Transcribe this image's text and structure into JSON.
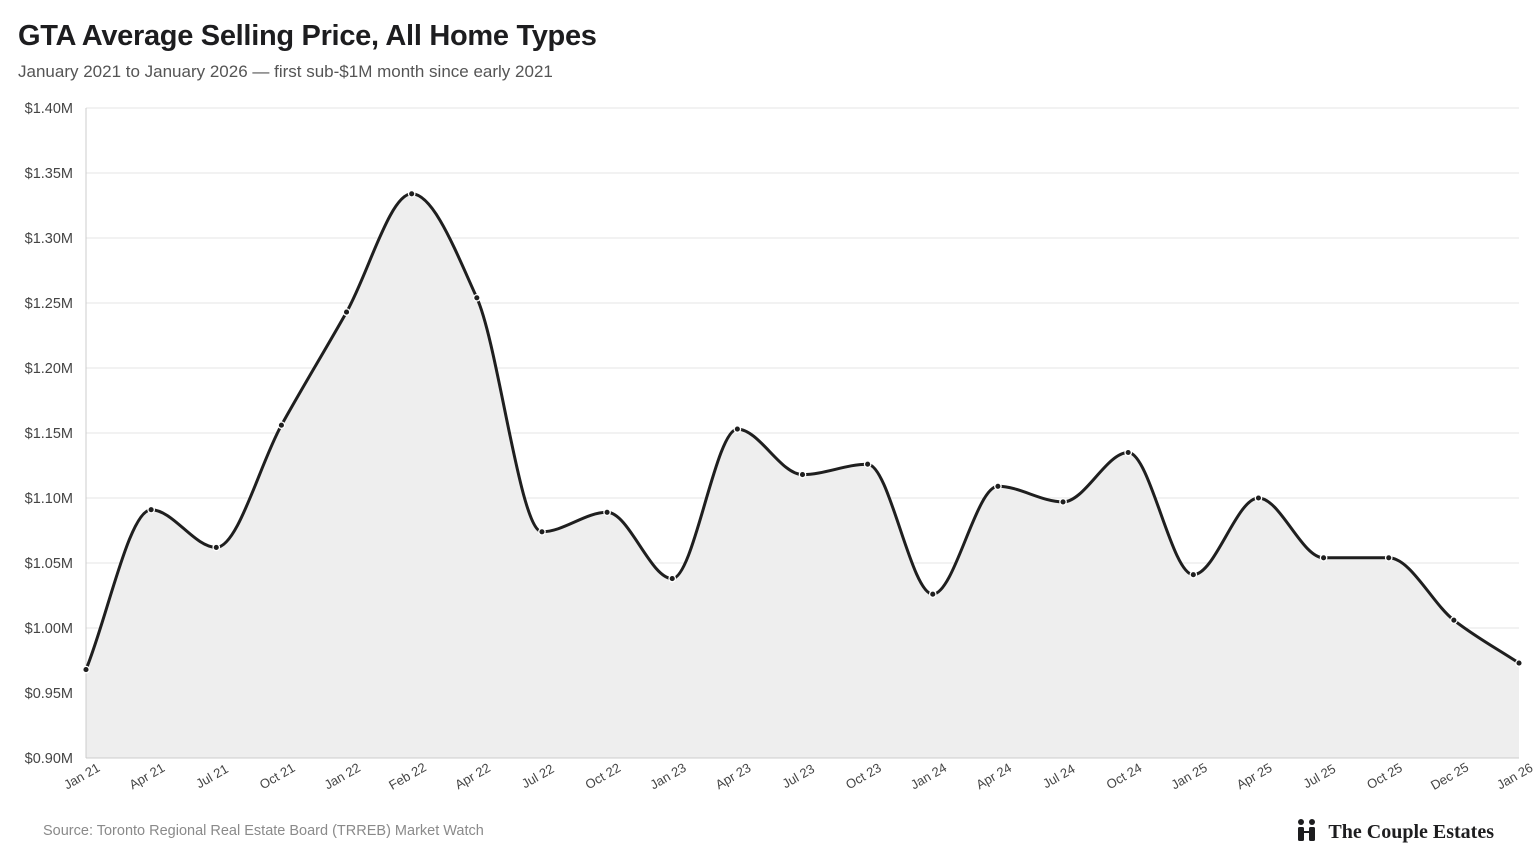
{
  "header": {
    "title": "GTA Average Selling Price, All Home Types",
    "subtitle": "January 2021 to January 2026 — first sub-$1M month since early 2021"
  },
  "footer": {
    "source": "Source: Toronto Regional Real Estate Board (TRREB) Market Watch",
    "brand_name": "The Couple Estates",
    "brand_icon": "couple-icon"
  },
  "colors": {
    "line": "#1f1f1f",
    "area": "#eeeeee",
    "grid": "#e6e6e6",
    "axis": "#cccccc"
  },
  "chart_data": {
    "type": "area",
    "title": "GTA Average Selling Price, All Home Types",
    "subtitle": "January 2021 to January 2026 — first sub-$1M month since early 2021",
    "xlabel": "",
    "ylabel": "",
    "ylim": [
      0.9,
      1.4
    ],
    "yticks": [
      0.9,
      0.95,
      1.0,
      1.05,
      1.1,
      1.15,
      1.2,
      1.25,
      1.3,
      1.35,
      1.4
    ],
    "ytick_labels": [
      "$0.90M",
      "$0.95M",
      "$1.00M",
      "$1.05M",
      "$1.10M",
      "$1.15M",
      "$1.20M",
      "$1.25M",
      "$1.30M",
      "$1.35M",
      "$1.40M"
    ],
    "grid": true,
    "legend": "none",
    "categories": [
      "Jan 21",
      "Apr 21",
      "Jul 21",
      "Oct 21",
      "Jan 22",
      "Feb 22",
      "Apr 22",
      "Jul 22",
      "Oct 22",
      "Jan 23",
      "Apr 23",
      "Jul 23",
      "Oct 23",
      "Jan 24",
      "Apr 24",
      "Jul 24",
      "Oct 24",
      "Jan 25",
      "Apr 25",
      "Jul 25",
      "Oct 25",
      "Dec 25",
      "Jan 26"
    ],
    "series": [
      {
        "values": [
          0.968,
          1.091,
          1.062,
          1.156,
          1.243,
          1.334,
          1.254,
          1.074,
          1.089,
          1.038,
          1.153,
          1.118,
          1.126,
          1.026,
          1.109,
          1.097,
          1.135,
          1.041,
          1.1,
          1.054,
          1.054,
          1.006,
          0.973
        ]
      }
    ]
  }
}
